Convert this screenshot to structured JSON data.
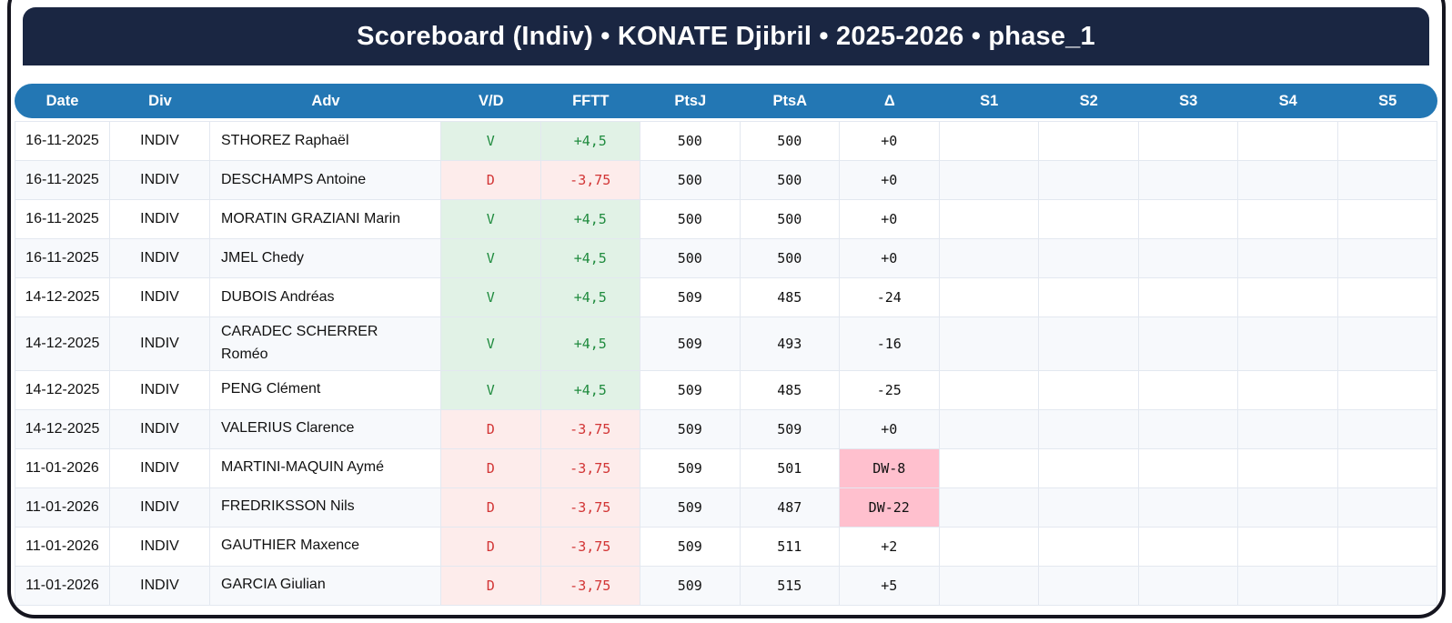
{
  "title": "Scoreboard (Indiv) • KONATE Djibril • 2025-2026 • phase_1",
  "colors": {
    "titlebar_bg": "#1a2642",
    "header_bg": "#2377b4",
    "win_text": "#1f8b3e",
    "win_bg": "#e1f2e6",
    "loss_text": "#d23434",
    "loss_bg": "#fdeceb",
    "warn_bg": "#ffc0ce",
    "row_alt_bg": "#f7f9fc",
    "grid_line": "#e3e8f0"
  },
  "table": {
    "columns": [
      "Date",
      "Div",
      "Adv",
      "V/D",
      "FFTT",
      "PtsJ",
      "PtsA",
      "Δ",
      "S1",
      "S2",
      "S3",
      "S4",
      "S5"
    ],
    "rows": [
      {
        "date": "16-11-2025",
        "div": "INDIV",
        "adv": "STHOREZ Raphaël",
        "vd": "V",
        "fftt": "+4,5",
        "ptsj": "500",
        "ptsa": "500",
        "delta": "+0",
        "s1": "",
        "s2": "",
        "s3": "",
        "s4": "",
        "s5": ""
      },
      {
        "date": "16-11-2025",
        "div": "INDIV",
        "adv": "DESCHAMPS Antoine",
        "vd": "D",
        "fftt": "-3,75",
        "ptsj": "500",
        "ptsa": "500",
        "delta": "+0",
        "s1": "",
        "s2": "",
        "s3": "",
        "s4": "",
        "s5": ""
      },
      {
        "date": "16-11-2025",
        "div": "INDIV",
        "adv": "MORATIN GRAZIANI Marin",
        "vd": "V",
        "fftt": "+4,5",
        "ptsj": "500",
        "ptsa": "500",
        "delta": "+0",
        "s1": "",
        "s2": "",
        "s3": "",
        "s4": "",
        "s5": ""
      },
      {
        "date": "16-11-2025",
        "div": "INDIV",
        "adv": "JMEL Chedy",
        "vd": "V",
        "fftt": "+4,5",
        "ptsj": "500",
        "ptsa": "500",
        "delta": "+0",
        "s1": "",
        "s2": "",
        "s3": "",
        "s4": "",
        "s5": ""
      },
      {
        "date": "14-12-2025",
        "div": "INDIV",
        "adv": "DUBOIS Andréas",
        "vd": "V",
        "fftt": "+4,5",
        "ptsj": "509",
        "ptsa": "485",
        "delta": "-24",
        "s1": "",
        "s2": "",
        "s3": "",
        "s4": "",
        "s5": ""
      },
      {
        "date": "14-12-2025",
        "div": "INDIV",
        "adv": "CARADEC SCHERRER\nRoméo",
        "vd": "V",
        "fftt": "+4,5",
        "ptsj": "509",
        "ptsa": "493",
        "delta": "-16",
        "s1": "",
        "s2": "",
        "s3": "",
        "s4": "",
        "s5": ""
      },
      {
        "date": "14-12-2025",
        "div": "INDIV",
        "adv": "PENG Clément",
        "vd": "V",
        "fftt": "+4,5",
        "ptsj": "509",
        "ptsa": "485",
        "delta": "-25",
        "s1": "",
        "s2": "",
        "s3": "",
        "s4": "",
        "s5": ""
      },
      {
        "date": "14-12-2025",
        "div": "INDIV",
        "adv": "VALERIUS Clarence",
        "vd": "D",
        "fftt": "-3,75",
        "ptsj": "509",
        "ptsa": "509",
        "delta": "+0",
        "s1": "",
        "s2": "",
        "s3": "",
        "s4": "",
        "s5": ""
      },
      {
        "date": "11-01-2026",
        "div": "INDIV",
        "adv": "MARTINI-MAQUIN Aymé",
        "vd": "D",
        "fftt": "-3,75",
        "ptsj": "509",
        "ptsa": "501",
        "delta": "DW-8",
        "s1": "",
        "s2": "",
        "s3": "",
        "s4": "",
        "s5": ""
      },
      {
        "date": "11-01-2026",
        "div": "INDIV",
        "adv": "FREDRIKSSON Nils",
        "vd": "D",
        "fftt": "-3,75",
        "ptsj": "509",
        "ptsa": "487",
        "delta": "DW-22",
        "s1": "",
        "s2": "",
        "s3": "",
        "s4": "",
        "s5": ""
      },
      {
        "date": "11-01-2026",
        "div": "INDIV",
        "adv": "GAUTHIER Maxence",
        "vd": "D",
        "fftt": "-3,75",
        "ptsj": "509",
        "ptsa": "511",
        "delta": "+2",
        "s1": "",
        "s2": "",
        "s3": "",
        "s4": "",
        "s5": ""
      },
      {
        "date": "11-01-2026",
        "div": "INDIV",
        "adv": "GARCIA Giulian",
        "vd": "D",
        "fftt": "-3,75",
        "ptsj": "509",
        "ptsa": "515",
        "delta": "+5",
        "s1": "",
        "s2": "",
        "s3": "",
        "s4": "",
        "s5": ""
      }
    ]
  }
}
